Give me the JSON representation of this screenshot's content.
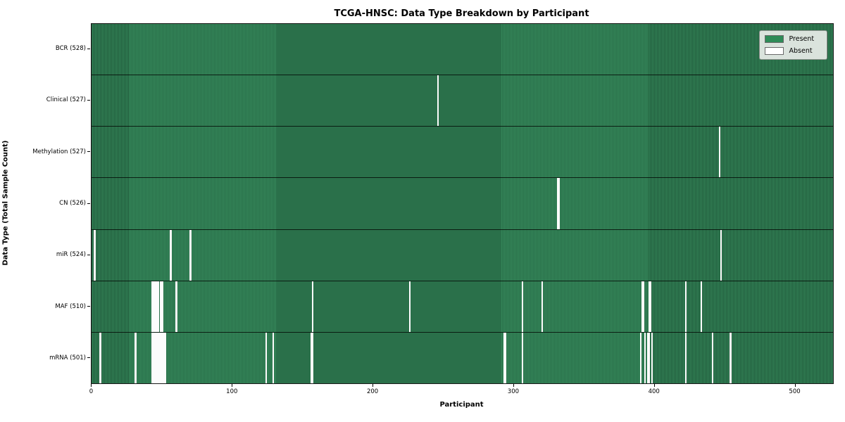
{
  "chart_data": {
    "type": "heatmap",
    "title": "TCGA-HNSC: Data Type Breakdown by Participant",
    "xlabel": "Participant",
    "ylabel": "Data Type (Total Sample Count)",
    "n_participants": 528,
    "xlim": [
      -0.5,
      527.5
    ],
    "x_ticks": [
      0,
      100,
      200,
      300,
      400,
      500
    ],
    "grid": false,
    "legend_position": "upper right",
    "legend": [
      {
        "label": "Present",
        "color": "#2e8b57"
      },
      {
        "label": "Absent",
        "color": "#ffffff"
      }
    ],
    "value_encoding": {
      "present": 1,
      "absent": 0
    },
    "rows": [
      {
        "label": "BCR (528)",
        "data_type": "BCR",
        "total_samples": 528,
        "absent_participants": []
      },
      {
        "label": "Clinical (527)",
        "data_type": "Clinical",
        "total_samples": 527,
        "absent_participants": [
          246
        ]
      },
      {
        "label": "Methylation (527)",
        "data_type": "Methylation",
        "total_samples": 527,
        "absent_participants": [
          446
        ]
      },
      {
        "label": "CN (526)",
        "data_type": "CN",
        "total_samples": 526,
        "absent_participants": [
          331,
          332
        ]
      },
      {
        "label": "miR (524)",
        "data_type": "miR",
        "total_samples": 524,
        "absent_participants": [
          2,
          56,
          70,
          447
        ]
      },
      {
        "label": "MAF (510)",
        "data_type": "MAF",
        "total_samples": 510,
        "absent_participants": [
          43,
          44,
          45,
          46,
          47,
          49,
          50,
          60,
          157,
          226,
          306,
          320,
          391,
          392,
          396,
          397,
          422,
          433
        ]
      },
      {
        "label": "mRNA (501)",
        "data_type": "mRNA",
        "total_samples": 501,
        "absent_participants": [
          6,
          31,
          43,
          44,
          45,
          46,
          47,
          48,
          49,
          50,
          51,
          52,
          124,
          129,
          156,
          157,
          293,
          294,
          306,
          390,
          393,
          395,
          396,
          398,
          422,
          441,
          454
        ]
      }
    ],
    "colors": {
      "present_fill": "#35875a",
      "present_edge": "#20593a",
      "absent_fill": "#fcfcfc",
      "row_separator": "#1a1a1a",
      "plot_border": "#1a1a1a"
    }
  }
}
